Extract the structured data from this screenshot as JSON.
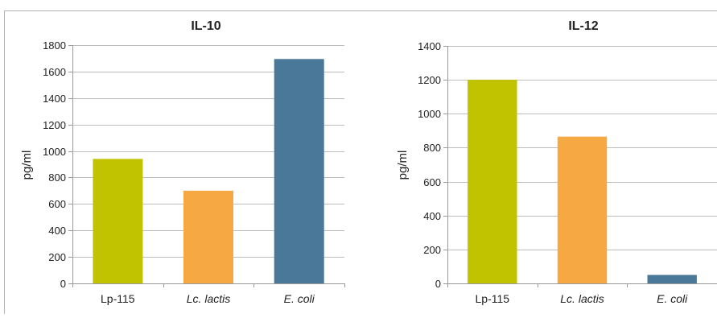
{
  "chart_data": [
    {
      "type": "bar",
      "title": "IL-10",
      "ylabel": "pg/ml",
      "xlabel": "",
      "categories": [
        "Lp-115",
        "Lc. lactis",
        "E. coli"
      ],
      "categories_italic": [
        false,
        true,
        true
      ],
      "values": [
        940,
        700,
        1695
      ],
      "colors": [
        "#c2c300",
        "#f6a943",
        "#4a7898"
      ],
      "ylim": [
        0,
        1800
      ],
      "yticks": [
        0,
        200,
        400,
        600,
        800,
        1000,
        1200,
        1400,
        1600,
        1800
      ],
      "grid": true,
      "legend": "none"
    },
    {
      "type": "bar",
      "title": "IL-12",
      "ylabel": "pg/ml",
      "xlabel": "",
      "categories": [
        "Lp-115",
        "Lc. lactis",
        "E. coli"
      ],
      "categories_italic": [
        false,
        true,
        true
      ],
      "values": [
        1200,
        865,
        50
      ],
      "colors": [
        "#c2c300",
        "#f6a943",
        "#4a7898"
      ],
      "ylim": [
        0,
        1400
      ],
      "yticks": [
        0,
        200,
        400,
        600,
        800,
        1000,
        1200,
        1400
      ],
      "grid": true,
      "legend": "none"
    }
  ]
}
